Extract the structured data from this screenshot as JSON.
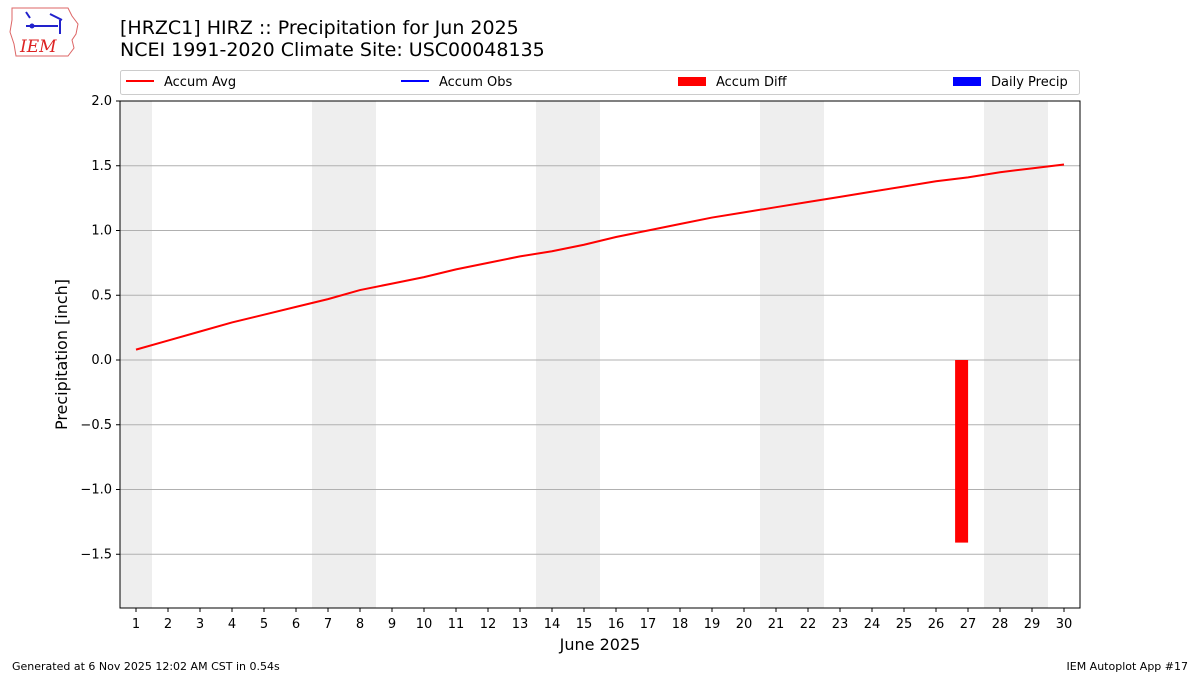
{
  "logo_text": "IEM",
  "title_line1": "[HRZC1] HIRZ :: Precipitation for Jun 2025",
  "title_line2": "NCEI 1991-2020 Climate Site: USC00048135",
  "footer_left": "Generated at 6 Nov 2025 12:02 AM CST in 0.54s",
  "footer_right": "IEM Autoplot App #17",
  "chart_data": {
    "type": "line",
    "xlabel": "June 2025",
    "ylabel": "Precipitation [inch]",
    "xlim": [
      0.5,
      30.5
    ],
    "ylim": [
      -1.915,
      2.0
    ],
    "yticks": [
      -1.5,
      -1.0,
      -0.5,
      0.0,
      0.5,
      1.0,
      1.5,
      2.0
    ],
    "ytick_labels": [
      "−1.5",
      "−1.0",
      "−0.5",
      "0.0",
      "0.5",
      "1.0",
      "1.5",
      "2.0"
    ],
    "x": [
      1,
      2,
      3,
      4,
      5,
      6,
      7,
      8,
      9,
      10,
      11,
      12,
      13,
      14,
      15,
      16,
      17,
      18,
      19,
      20,
      21,
      22,
      23,
      24,
      25,
      26,
      27,
      28,
      29,
      30
    ],
    "grid": "horizontal",
    "legend_position": "top",
    "weekend_shading": [
      [
        0.5,
        1.5
      ],
      [
        6.5,
        8.5
      ],
      [
        13.5,
        15.5
      ],
      [
        20.5,
        22.5
      ],
      [
        27.5,
        29.5
      ]
    ],
    "legend": [
      {
        "label": "Accum Avg",
        "color": "#ff0000",
        "kind": "line"
      },
      {
        "label": "Accum Obs",
        "color": "#0000ff",
        "kind": "line"
      },
      {
        "label": "Accum Diff",
        "color": "#ff0000",
        "kind": "bar"
      },
      {
        "label": "Daily Precip",
        "color": "#0000ff",
        "kind": "bar"
      }
    ],
    "series": [
      {
        "name": "Accum Avg",
        "color": "#ff0000",
        "values": [
          0.08,
          0.15,
          0.22,
          0.29,
          0.35,
          0.41,
          0.47,
          0.54,
          0.59,
          0.64,
          0.7,
          0.75,
          0.8,
          0.84,
          0.89,
          0.95,
          1.0,
          1.05,
          1.1,
          1.14,
          1.18,
          1.22,
          1.26,
          1.3,
          1.34,
          1.38,
          1.41,
          1.45,
          1.48,
          1.51
        ]
      },
      {
        "name": "Accum Diff",
        "color": "#ff0000",
        "kind": "bar",
        "points": [
          {
            "x": 26.8,
            "value": -1.41
          }
        ]
      }
    ]
  }
}
